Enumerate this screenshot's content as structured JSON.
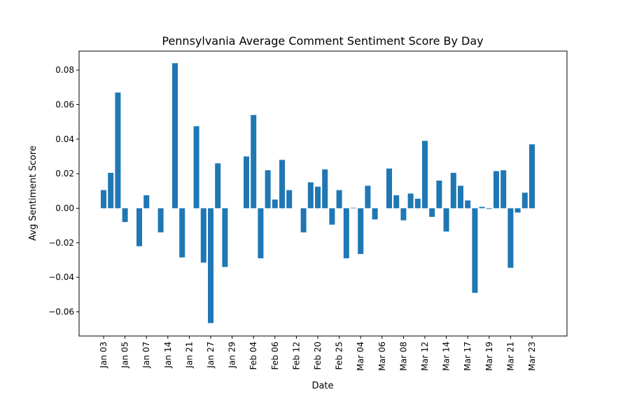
{
  "chart_data": {
    "type": "bar",
    "title": "Pennsylvania Average Comment Sentiment Score By Day",
    "xlabel": "Date",
    "ylabel": "Avg Sentiment Score",
    "ylim": [
      -0.074,
      0.091
    ],
    "yticks": [
      -0.06,
      -0.04,
      -0.02,
      0.0,
      0.02,
      0.04,
      0.06,
      0.08
    ],
    "ytick_labels": [
      "−0.06",
      "−0.04",
      "−0.02",
      "0.00",
      "0.02",
      "0.04",
      "0.06",
      "0.08"
    ],
    "xticks": [
      {
        "index": 0,
        "label": "Jan 03"
      },
      {
        "index": 3,
        "label": "Jan 05"
      },
      {
        "index": 6,
        "label": "Jan 07"
      },
      {
        "index": 9,
        "label": "Jan 14"
      },
      {
        "index": 12,
        "label": "Jan 21"
      },
      {
        "index": 15,
        "label": "Jan 27"
      },
      {
        "index": 18,
        "label": "Jan 29"
      },
      {
        "index": 21,
        "label": "Feb 04"
      },
      {
        "index": 24,
        "label": "Feb 06"
      },
      {
        "index": 27,
        "label": "Feb 12"
      },
      {
        "index": 30,
        "label": "Feb 20"
      },
      {
        "index": 33,
        "label": "Feb 25"
      },
      {
        "index": 36,
        "label": "Mar 04"
      },
      {
        "index": 39,
        "label": "Mar 06"
      },
      {
        "index": 42,
        "label": "Mar 08"
      },
      {
        "index": 45,
        "label": "Mar 12"
      },
      {
        "index": 48,
        "label": "Mar 14"
      },
      {
        "index": 51,
        "label": "Mar 17"
      },
      {
        "index": 54,
        "label": "Mar 19"
      },
      {
        "index": 57,
        "label": "Mar 21"
      },
      {
        "index": 60,
        "label": "Mar 23"
      }
    ],
    "values": [
      0.0105,
      0.0205,
      0.067,
      -0.008,
      null,
      -0.022,
      0.0075,
      null,
      -0.014,
      null,
      0.084,
      -0.0285,
      null,
      0.0475,
      -0.0315,
      -0.0665,
      0.026,
      -0.034,
      null,
      null,
      0.03,
      0.054,
      -0.029,
      0.022,
      0.005,
      0.028,
      0.0105,
      null,
      -0.014,
      0.015,
      0.0125,
      0.0225,
      -0.0095,
      0.0105,
      -0.029,
      0.0003,
      -0.0265,
      0.013,
      -0.0065,
      null,
      0.023,
      0.0075,
      -0.007,
      0.0085,
      0.0055,
      0.039,
      -0.005,
      0.016,
      -0.0135,
      0.0205,
      0.013,
      0.0045,
      -0.049,
      0.0008,
      -0.0004,
      0.0215,
      0.022,
      -0.0345,
      -0.0025,
      0.009,
      0.037
    ],
    "color": "#1f77b4",
    "grid": false,
    "legend": "none"
  }
}
